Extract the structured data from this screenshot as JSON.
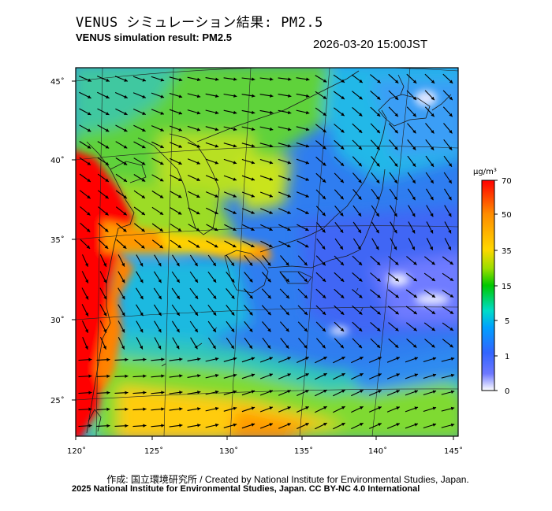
{
  "header": {
    "title_jp": "VENUS シミュレーション結果: PM2.5",
    "title_en": "VENUS simulation result: PM2.5",
    "timestamp": "2026-03-20 15:00JST"
  },
  "map": {
    "lon_ticks": [
      "120˚",
      "125˚",
      "130˚",
      "135˚",
      "140˚",
      "145˚"
    ],
    "lat_ticks": [
      "45˚",
      "40˚",
      "35˚",
      "30˚",
      "25˚"
    ],
    "colors": {
      "land_outline": "#1a1a1a",
      "graticule": "#222222",
      "arrow": "#000000"
    }
  },
  "colorbar": {
    "unit": "μg/m³",
    "ticks": [
      "70",
      "50",
      "35",
      "15",
      "5",
      "1",
      "0"
    ],
    "stops": [
      "#ff0000",
      "#ff8c00",
      "#ffd700",
      "#9ade00",
      "#00c800",
      "#00dcc8",
      "#00a0ff",
      "#3264ff",
      "#6e78ff",
      "#ffffff"
    ]
  },
  "footer": {
    "credit_line1": "作成: 国立環境研究所 / Created by National Institute for Environmental Studies, Japan.",
    "credit_line2": "2025 National Institute for Environmental Studies, Japan. CC BY-NC 4.0 International"
  }
}
